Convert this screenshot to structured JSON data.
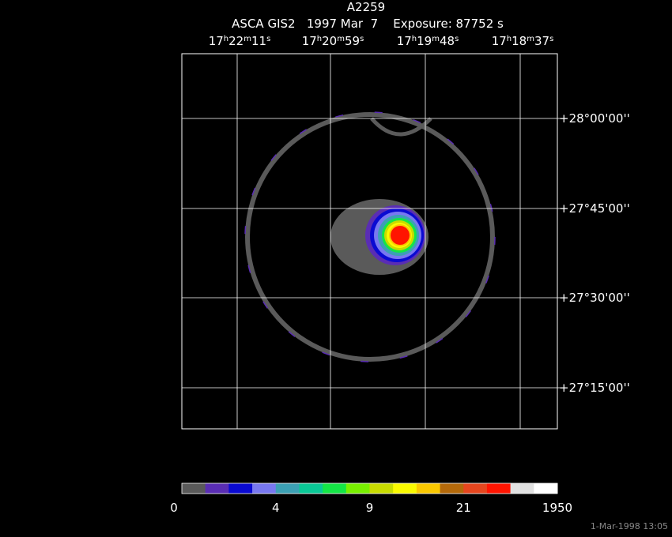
{
  "image": {
    "title": "A2259",
    "subtitle": "ASCA GIS2   1997 Mar  7    Exposure: 87752 s",
    "ra_labels": [
      "17h22m11s",
      "17h20m59s",
      "17h19m48s",
      "17h18m37s"
    ],
    "dec_labels": [
      "+28°00'00''",
      "+27°45'00''",
      "+27°30'00''",
      "+27°15'00''"
    ],
    "colorbar": {
      "colors": [
        "#5a5a5a",
        "#5a2db4",
        "#0a0ad2",
        "#7878f0",
        "#3ca0b4",
        "#0ac896",
        "#14e646",
        "#78f000",
        "#c8dc00",
        "#fafa00",
        "#fac800",
        "#b4690a",
        "#e6461e",
        "#ff1400",
        "#e1e1e1",
        "#ffffff"
      ],
      "labels": [
        0,
        4,
        9,
        21,
        1950
      ]
    },
    "timestamp": "1-Mar-1998 13:05"
  }
}
